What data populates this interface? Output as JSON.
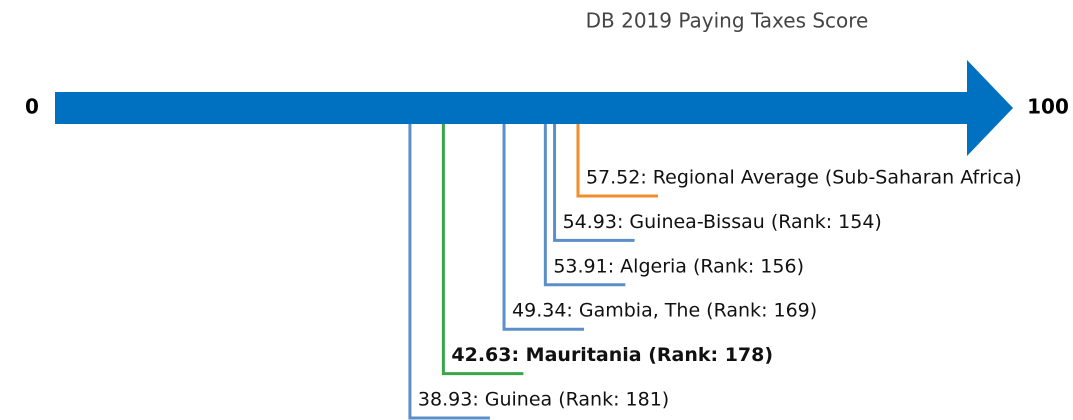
{
  "chart_data": {
    "type": "number-line",
    "title": "DB 2019 Paying Taxes Score",
    "xlim": [
      0,
      100
    ],
    "xticks": [
      0,
      100
    ],
    "axis_color": "#0070c0",
    "points": [
      {
        "value": 57.52,
        "value_label": "57.52: Regional Average (Sub-Saharan Africa)",
        "color": "#f28e2b",
        "bold": false
      },
      {
        "value": 54.93,
        "value_label": "54.93: Guinea-Bissau (Rank: 154)",
        "color": "#5b8fc9",
        "bold": false
      },
      {
        "value": 53.91,
        "value_label": "53.91: Algeria (Rank: 156)",
        "color": "#5b8fc9",
        "bold": false
      },
      {
        "value": 49.34,
        "value_label": "49.34: Gambia, The (Rank: 169)",
        "color": "#5b8fc9",
        "bold": false
      },
      {
        "value": 42.63,
        "value_label": "42.63: Mauritania (Rank: 178)",
        "color": "#3aa64a",
        "bold": true
      },
      {
        "value": 38.93,
        "value_label": "38.93: Guinea (Rank: 181)",
        "color": "#5b8fc9",
        "bold": false
      }
    ]
  }
}
